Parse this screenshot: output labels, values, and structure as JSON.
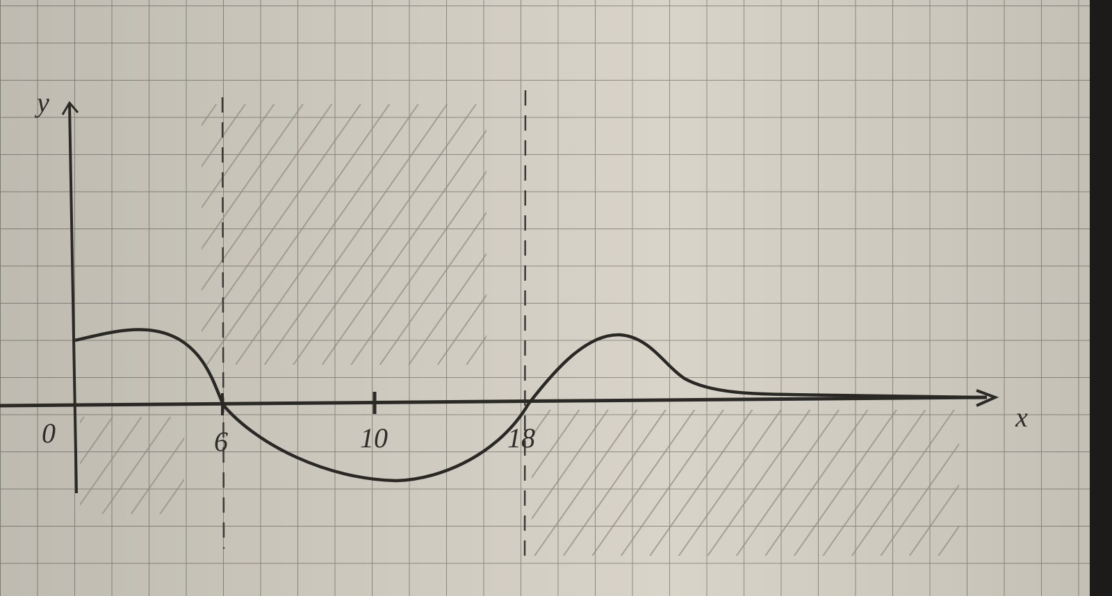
{
  "axes": {
    "y_label": "y",
    "x_label": "x"
  },
  "ticks": [
    "0",
    "6",
    "10",
    "18"
  ]
}
